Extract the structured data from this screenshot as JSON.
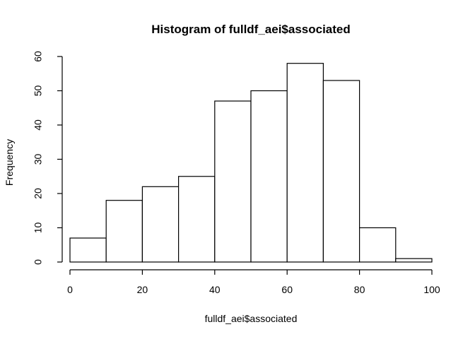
{
  "chart_data": {
    "type": "bar",
    "title": "Histogram of fulldf_aei$associated",
    "xlabel": "fulldf_aei$associated",
    "ylabel": "Frequency",
    "bins": [
      {
        "from": 0,
        "to": 10,
        "count": 7
      },
      {
        "from": 10,
        "to": 20,
        "count": 18
      },
      {
        "from": 20,
        "to": 30,
        "count": 22
      },
      {
        "from": 30,
        "to": 40,
        "count": 25
      },
      {
        "from": 40,
        "to": 50,
        "count": 47
      },
      {
        "from": 50,
        "to": 60,
        "count": 50
      },
      {
        "from": 60,
        "to": 70,
        "count": 58
      },
      {
        "from": 70,
        "to": 80,
        "count": 53
      },
      {
        "from": 80,
        "to": 90,
        "count": 10
      },
      {
        "from": 90,
        "to": 100,
        "count": 1
      }
    ],
    "xlim": [
      0,
      100
    ],
    "ylim": [
      0,
      60
    ],
    "x_ticks": [
      0,
      20,
      40,
      60,
      80,
      100
    ],
    "y_ticks": [
      0,
      10,
      20,
      30,
      40,
      50,
      60
    ],
    "grid": false,
    "legend": "none",
    "bar_fill": "#ffffff",
    "bar_stroke": "#000000"
  }
}
